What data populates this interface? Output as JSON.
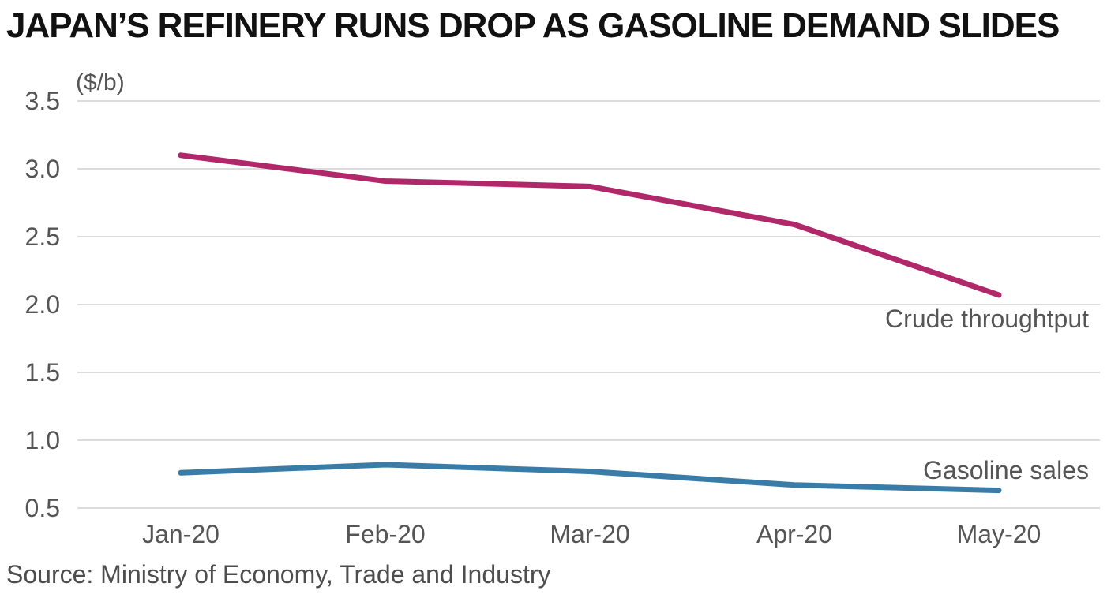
{
  "title": "JAPAN’S REFINERY RUNS DROP AS GASOLINE DEMAND SLIDES",
  "source": "Source: Ministry of Economy, Trade and Industry",
  "colors": {
    "crude": "#b0286a",
    "gasoline": "#3a7ca8",
    "grid": "#dcdcdc",
    "text": "#555555"
  },
  "chart_data": {
    "type": "line",
    "title": "JAPAN’S REFINERY RUNS DROP AS GASOLINE DEMAND SLIDES",
    "ylabel": "($/b)",
    "xlabel": "",
    "ylim": [
      0.5,
      3.5
    ],
    "yticks": [
      "0.5",
      "1.0",
      "1.5",
      "2.0",
      "2.5",
      "3.0",
      "3.5"
    ],
    "categories": [
      "Jan-20",
      "Feb-20",
      "Mar-20",
      "Apr-20",
      "May-20"
    ],
    "series": [
      {
        "name": "Crude throughtput",
        "color": "#b0286a",
        "values": [
          3.1,
          2.91,
          2.87,
          2.59,
          2.07
        ]
      },
      {
        "name": "Gasoline sales",
        "color": "#3a7ca8",
        "values": [
          0.76,
          0.82,
          0.77,
          0.67,
          0.63
        ]
      }
    ],
    "grid": true,
    "legend": "direct-labels"
  }
}
